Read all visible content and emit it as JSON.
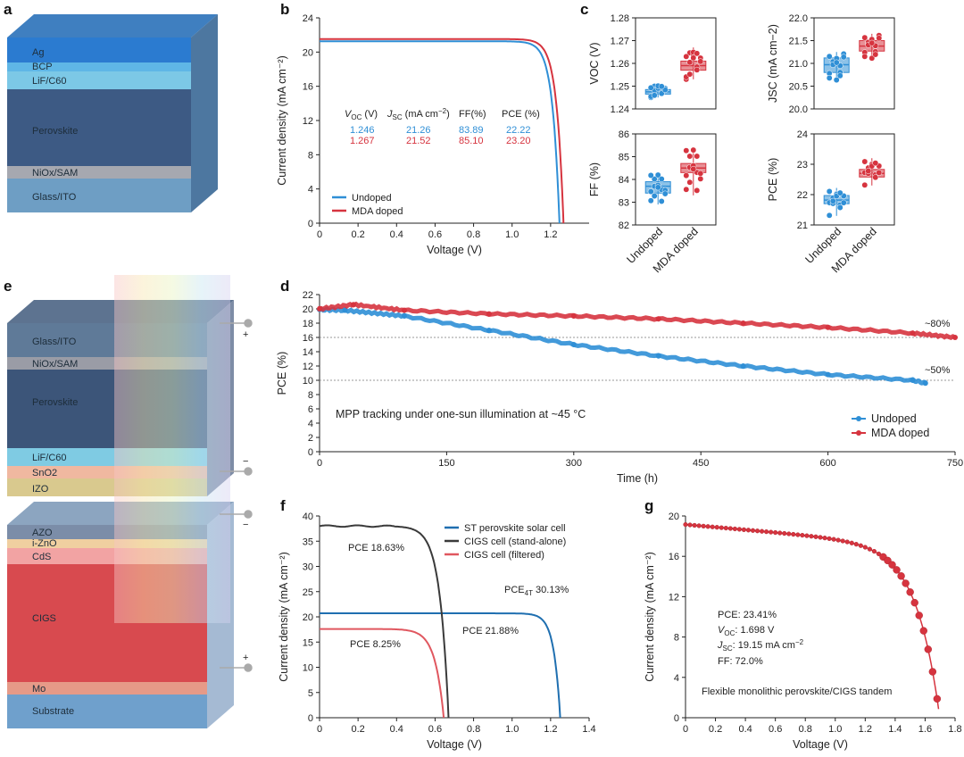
{
  "colors": {
    "undoped": "#2f8fd6",
    "doped": "#d6343f",
    "stblue": "#1f6fb0",
    "cigs": "#3a3a3a",
    "filtered": "#e0575f"
  },
  "panels": {
    "a": "a",
    "b": "b",
    "c": "c",
    "d": "d",
    "e": "e",
    "f": "f",
    "g": "g"
  },
  "stack_a": {
    "layers": [
      "Ag",
      "BCP",
      "LiF/C60",
      "Perovskite",
      "NiOx/SAM",
      "Glass/ITO"
    ]
  },
  "stack_e": {
    "top": [
      "Glass/ITO",
      "NiOx/SAM",
      "Perovskite",
      "LiF/C60",
      "SnO2",
      "IZO"
    ],
    "bottom": [
      "AZO",
      "i-ZnO",
      "CdS",
      "CIGS",
      "Mo",
      "Substrate"
    ],
    "signs": [
      "+",
      "−",
      "−",
      "+"
    ]
  },
  "chart_data": [
    {
      "id": "b",
      "type": "line",
      "xlabel": "Voltage (V)",
      "ylabel": "Current density (mA cm⁻²)",
      "xlim": [
        0,
        1.4
      ],
      "ylim": [
        0,
        24
      ],
      "xticks": [
        "0",
        "0.2",
        "0.4",
        "0.6",
        "0.8",
        "1.0",
        "1.2"
      ],
      "yticks": [
        "0",
        "4",
        "8",
        "12",
        "16",
        "20",
        "24"
      ],
      "series": [
        {
          "name": "Undoped",
          "voc": 1.246,
          "jsc": 21.26,
          "ff": 83.89,
          "pce": 22.22
        },
        {
          "name": "MDA doped",
          "voc": 1.267,
          "jsc": 21.52,
          "ff": 85.1,
          "pce": 23.2
        }
      ],
      "table": {
        "headers": [
          "VOC (V)",
          "JSC (mA cm−2)",
          "FF(%)",
          "PCE (%)"
        ],
        "undoped": [
          "1.246",
          "21.26",
          "83.89",
          "22.22"
        ],
        "doped": [
          "1.267",
          "21.52",
          "85.10",
          "23.20"
        ]
      }
    },
    {
      "id": "c",
      "type": "box",
      "categories": [
        "Undoped",
        "MDA doped"
      ],
      "subplots": [
        {
          "ylabel": "VOC (V)",
          "ylim": [
            1.24,
            1.28
          ],
          "yticks": [
            "1.24",
            "1.25",
            "1.26",
            "1.27",
            "1.28"
          ],
          "undoped": {
            "q1": 1.2465,
            "med": 1.2475,
            "q3": 1.2485,
            "min": 1.245,
            "max": 1.251
          },
          "doped": {
            "q1": 1.257,
            "med": 1.259,
            "q3": 1.261,
            "min": 1.253,
            "max": 1.267
          }
        },
        {
          "ylabel": "JSC (mA cm−2)",
          "ylim": [
            20.0,
            22.0
          ],
          "yticks": [
            "20.0",
            "20.5",
            "21.0",
            "21.5",
            "22.0"
          ],
          "undoped": {
            "q1": 20.8,
            "med": 20.97,
            "q3": 21.12,
            "min": 20.62,
            "max": 21.25
          },
          "doped": {
            "q1": 21.27,
            "med": 21.38,
            "q3": 21.5,
            "min": 21.1,
            "max": 21.65
          }
        },
        {
          "ylabel": "FF (%)",
          "ylim": [
            82,
            86
          ],
          "yticks": [
            "82",
            "83",
            "84",
            "85",
            "86"
          ],
          "undoped": {
            "q1": 83.4,
            "med": 83.7,
            "q3": 83.9,
            "min": 82.9,
            "max": 84.2
          },
          "doped": {
            "q1": 84.3,
            "med": 84.5,
            "q3": 84.7,
            "min": 83.3,
            "max": 85.3
          }
        },
        {
          "ylabel": "PCE (%)",
          "ylim": [
            21,
            24
          ],
          "yticks": [
            "21",
            "22",
            "23",
            "24"
          ],
          "undoped": {
            "q1": 21.7,
            "med": 21.82,
            "q3": 21.97,
            "min": 21.3,
            "max": 22.22
          },
          "doped": {
            "q1": 22.58,
            "med": 22.7,
            "q3": 22.83,
            "min": 22.3,
            "max": 23.2
          }
        }
      ]
    },
    {
      "id": "d",
      "type": "scatter",
      "xlabel": "Time (h)",
      "ylabel": "PCE (%)",
      "xlim": [
        0,
        750
      ],
      "ylim": [
        0,
        22
      ],
      "xticks": [
        "0",
        "150",
        "300",
        "450",
        "600",
        "750"
      ],
      "yticks": [
        "0",
        "2",
        "4",
        "6",
        "8",
        "10",
        "12",
        "14",
        "16",
        "18",
        "20",
        "22"
      ],
      "annotations": [
        "~80%",
        "~50%"
      ],
      "note": "MPP tracking under one-sun illumination at ~45 °C",
      "series": [
        {
          "name": "Undoped",
          "x": [
            0,
            30,
            100,
            200,
            300,
            400,
            500,
            600,
            700,
            715
          ],
          "y": [
            19.9,
            19.8,
            19.0,
            17.0,
            15.0,
            13.4,
            12.0,
            10.8,
            10.0,
            9.6
          ]
        },
        {
          "name": "MDA doped",
          "x": [
            0,
            40,
            100,
            200,
            300,
            400,
            500,
            600,
            700,
            750
          ],
          "y": [
            20.0,
            20.6,
            19.8,
            19.3,
            19.0,
            18.6,
            18.0,
            17.4,
            16.6,
            16.0
          ]
        }
      ]
    },
    {
      "id": "f",
      "type": "line",
      "xlabel": "Voltage (V)",
      "ylabel": "Current density (mA cm⁻²)",
      "xlim": [
        0,
        1.4
      ],
      "ylim": [
        0,
        40
      ],
      "xticks": [
        "0",
        "0.2",
        "0.4",
        "0.6",
        "0.8",
        "1.0",
        "1.2",
        "1.4"
      ],
      "yticks": [
        "0",
        "5",
        "10",
        "15",
        "20",
        "25",
        "30",
        "35",
        "40"
      ],
      "legend": [
        "ST perovskite solar cell",
        "CIGS cell (stand-alone)",
        "CIGS cell (filtered)"
      ],
      "labels": {
        "cigs": "PCE 18.63%",
        "filtered": "PCE 8.25%",
        "st": "PCE 21.88%",
        "tandem": "PCE4T 30.13%"
      },
      "series": [
        {
          "name": "ST perovskite solar cell",
          "jsc": 20.7,
          "voc": 1.25
        },
        {
          "name": "CIGS cell (stand-alone)",
          "jsc": 38.0,
          "voc": 0.67
        },
        {
          "name": "CIGS cell (filtered)",
          "jsc": 17.6,
          "voc": 0.645
        }
      ]
    },
    {
      "id": "g",
      "type": "line",
      "xlabel": "Voltage (V)",
      "ylabel": "Current density (mA cm⁻²)",
      "xlim": [
        0,
        1.8
      ],
      "ylim": [
        0,
        20
      ],
      "xticks": [
        "0",
        "0.2",
        "0.4",
        "0.6",
        "0.8",
        "1.0",
        "1.2",
        "1.4",
        "1.6",
        "1.8"
      ],
      "yticks": [
        "0",
        "4",
        "8",
        "12",
        "16",
        "20"
      ],
      "series": [
        {
          "name": "Tandem",
          "jsc": 19.15,
          "voc": 1.698
        }
      ],
      "labels": {
        "pce": "PCE: 23.41%",
        "voc": ": 1.698 V",
        "jsc": ": 19.15 mA cm",
        "ff": "FF: 72.0%",
        "caption": "Flexible monolithic perovskite/CIGS tandem"
      }
    }
  ],
  "legend_b": [
    "Undoped",
    "MDA doped"
  ],
  "legend_d": [
    "Undoped",
    "MDA doped"
  ]
}
